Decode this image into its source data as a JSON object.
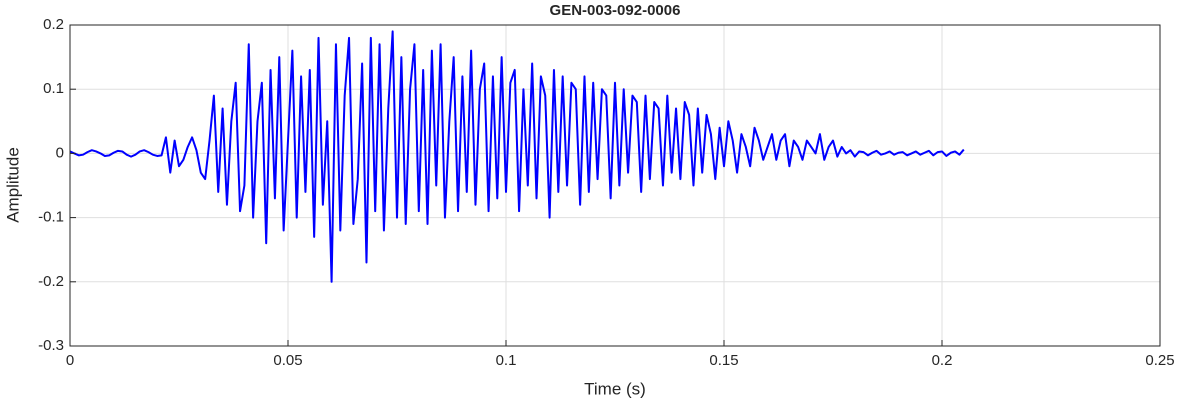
{
  "chart_data": {
    "type": "line",
    "title": "GEN-003-092-0006",
    "xlabel": "Time (s)",
    "ylabel": "Amplitude",
    "xlim": [
      0,
      0.25
    ],
    "xticks": [
      0,
      0.05,
      0.1,
      0.15,
      0.2,
      0.25
    ],
    "ylim": [
      -0.3,
      0.2
    ],
    "yticks": [
      -0.3,
      -0.2,
      -0.1,
      0,
      0.1,
      0.2
    ],
    "grid": true,
    "x": [
      0,
      0.001,
      0.002,
      0.003,
      0.004,
      0.005,
      0.006,
      0.007,
      0.008,
      0.009,
      0.01,
      0.011,
      0.012,
      0.013,
      0.014,
      0.015,
      0.016,
      0.017,
      0.018,
      0.019,
      0.02,
      0.021,
      0.022,
      0.023,
      0.024,
      0.025,
      0.026,
      0.027,
      0.028,
      0.029,
      0.03,
      0.031,
      0.032,
      0.033,
      0.034,
      0.035,
      0.036,
      0.037,
      0.038,
      0.039,
      0.04,
      0.041,
      0.042,
      0.043,
      0.044,
      0.045,
      0.046,
      0.047,
      0.048,
      0.049,
      0.05,
      0.051,
      0.052,
      0.053,
      0.054,
      0.055,
      0.056,
      0.057,
      0.058,
      0.059,
      0.06,
      0.061,
      0.062,
      0.063,
      0.064,
      0.065,
      0.066,
      0.067,
      0.068,
      0.069,
      0.07,
      0.071,
      0.072,
      0.073,
      0.074,
      0.075,
      0.076,
      0.077,
      0.078,
      0.079,
      0.08,
      0.081,
      0.082,
      0.083,
      0.084,
      0.085,
      0.086,
      0.087,
      0.088,
      0.089,
      0.09,
      0.091,
      0.092,
      0.093,
      0.094,
      0.095,
      0.096,
      0.097,
      0.098,
      0.099,
      0.1,
      0.101,
      0.102,
      0.103,
      0.104,
      0.105,
      0.106,
      0.107,
      0.108,
      0.109,
      0.11,
      0.111,
      0.112,
      0.113,
      0.114,
      0.115,
      0.116,
      0.117,
      0.118,
      0.119,
      0.12,
      0.121,
      0.122,
      0.123,
      0.124,
      0.125,
      0.126,
      0.127,
      0.128,
      0.129,
      0.13,
      0.131,
      0.132,
      0.133,
      0.134,
      0.135,
      0.136,
      0.137,
      0.138,
      0.139,
      0.14,
      0.141,
      0.142,
      0.143,
      0.144,
      0.145,
      0.146,
      0.147,
      0.148,
      0.149,
      0.15,
      0.151,
      0.152,
      0.153,
      0.154,
      0.155,
      0.156,
      0.157,
      0.158,
      0.159,
      0.16,
      0.161,
      0.162,
      0.163,
      0.164,
      0.165,
      0.166,
      0.167,
      0.168,
      0.169,
      0.17,
      0.171,
      0.172,
      0.173,
      0.174,
      0.175,
      0.176,
      0.177,
      0.178,
      0.179,
      0.18,
      0.181,
      0.182,
      0.183,
      0.184,
      0.185,
      0.186,
      0.187,
      0.188,
      0.189,
      0.19,
      0.191,
      0.192,
      0.193,
      0.194,
      0.195,
      0.196,
      0.197,
      0.198,
      0.199,
      0.2,
      0.201,
      0.202,
      0.203,
      0.204,
      0.205
    ],
    "series": [
      {
        "color": "#0000ff",
        "values": [
          0.003,
          0,
          -0.003,
          -0.002,
          0.002,
          0.005,
          0.003,
          0,
          -0.004,
          -0.003,
          0.001,
          0.004,
          0.003,
          -0.002,
          -0.005,
          -0.002,
          0.003,
          0.005,
          0.002,
          -0.002,
          -0.004,
          -0.003,
          0.025,
          -0.03,
          0.02,
          -0.02,
          -0.01,
          0.01,
          0.025,
          0.005,
          -0.03,
          -0.04,
          0.02,
          0.09,
          -0.06,
          0.07,
          -0.08,
          0.05,
          0.11,
          -0.09,
          -0.05,
          0.17,
          -0.1,
          0.05,
          0.11,
          -0.14,
          0.13,
          -0.07,
          0.15,
          -0.12,
          0.02,
          0.16,
          -0.1,
          0.12,
          -0.06,
          0.13,
          -0.13,
          0.18,
          -0.08,
          0.05,
          -0.2,
          0.17,
          -0.12,
          0.09,
          0.18,
          -0.11,
          -0.04,
          0.14,
          -0.17,
          0.18,
          -0.09,
          0.17,
          -0.12,
          0.07,
          0.19,
          -0.1,
          0.15,
          -0.11,
          0.1,
          0.17,
          -0.09,
          0.13,
          -0.11,
          0.16,
          -0.05,
          0.17,
          -0.1,
          0.05,
          0.15,
          -0.09,
          0.12,
          -0.06,
          0.16,
          -0.08,
          0.1,
          0.14,
          -0.09,
          0.12,
          -0.07,
          0.15,
          -0.06,
          0.11,
          0.13,
          -0.09,
          0.1,
          -0.05,
          0.14,
          -0.07,
          0.12,
          0.09,
          -0.1,
          0.13,
          -0.06,
          0.12,
          -0.05,
          0.11,
          0.1,
          -0.08,
          0.12,
          -0.06,
          0.11,
          -0.04,
          0.1,
          0.09,
          -0.07,
          0.11,
          -0.05,
          0.1,
          -0.03,
          0.09,
          0.08,
          -0.06,
          0.09,
          -0.04,
          0.08,
          0.07,
          -0.05,
          0.09,
          -0.03,
          0.07,
          -0.04,
          0.08,
          0.06,
          -0.05,
          0.07,
          -0.03,
          0.06,
          0.03,
          -0.04,
          0.04,
          -0.02,
          0.05,
          0.02,
          -0.03,
          0.03,
          0.01,
          -0.02,
          0.04,
          0.02,
          -0.01,
          0.01,
          0.03,
          -0.01,
          0.02,
          0.03,
          -0.02,
          0.02,
          0.01,
          -0.01,
          0.02,
          0.01,
          0,
          0.03,
          -0.01,
          0.01,
          0.02,
          -0.005,
          0.01,
          0,
          0.005,
          -0.005,
          0.003,
          0.002,
          -0.003,
          0.001,
          0.004,
          -0.002,
          0,
          0.003,
          -0.002,
          0.001,
          0.002,
          -0.003,
          0,
          0.003,
          -0.002,
          0.001,
          0.004,
          -0.003,
          0.002,
          0.003,
          -0.004,
          0.001,
          0.003,
          -0.002,
          0.006
        ]
      }
    ]
  }
}
